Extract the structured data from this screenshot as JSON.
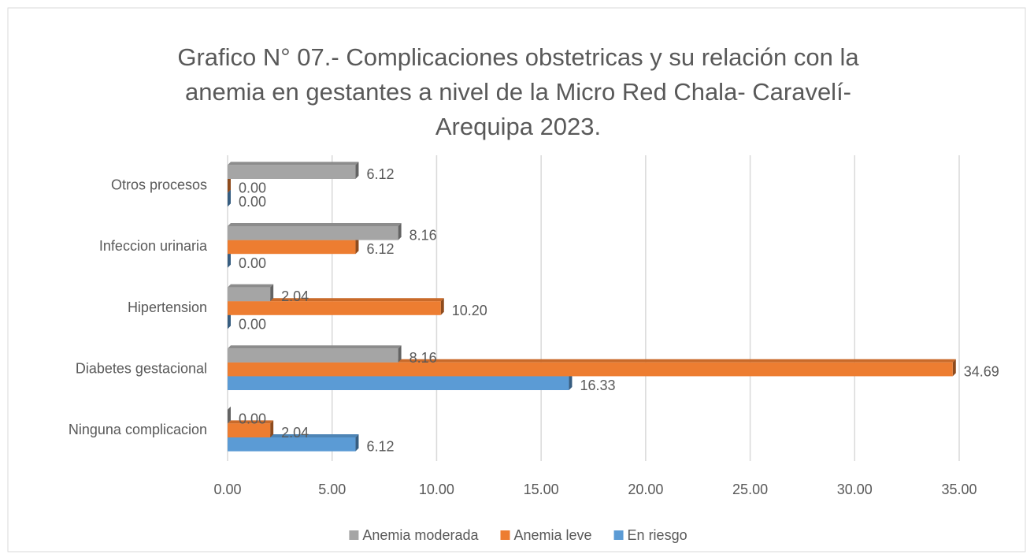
{
  "chart_data": {
    "type": "bar",
    "orientation": "horizontal",
    "title": [
      "Grafico N° 07.- Complicaciones obstetricas y su relación con la",
      "anemia en gestantes a nivel de la Micro Red Chala- Caravelí-",
      "Arequipa 2023."
    ],
    "categories": [
      "Ninguna complicacion",
      "Diabetes gestacional",
      "Hipertension",
      "Infeccion urinaria",
      "Otros procesos"
    ],
    "series": [
      {
        "name": "En riesgo",
        "color": "#5b9bd5",
        "values": [
          6.12,
          16.33,
          0,
          0,
          0
        ],
        "value_labels": [
          "6.12",
          "16.33",
          "0.00",
          "0.00",
          "0.00"
        ]
      },
      {
        "name": "Anemia leve",
        "color": "#ed7d31",
        "values": [
          2.04,
          34.69,
          10.2,
          6.12,
          0
        ],
        "value_labels": [
          "2.04",
          "34.69",
          "10.20",
          "6.12",
          "0.00"
        ]
      },
      {
        "name": "Anemia moderada",
        "color": "#a5a5a5",
        "values": [
          0,
          8.16,
          2.04,
          8.16,
          6.12
        ],
        "value_labels": [
          "0.00",
          "8.16",
          "2.04",
          "8.16",
          "6.12"
        ]
      }
    ],
    "xlim": [
      0,
      35
    ],
    "xticks": [
      {
        "value": 0,
        "label": "0.00"
      },
      {
        "value": 5,
        "label": "5.00"
      },
      {
        "value": 10,
        "label": "10.00"
      },
      {
        "value": 15,
        "label": "15.00"
      },
      {
        "value": 20,
        "label": "20.00"
      },
      {
        "value": 25,
        "label": "25.00"
      },
      {
        "value": 30,
        "label": "30.00"
      },
      {
        "value": 35,
        "label": "35.00"
      }
    ],
    "grid": true,
    "legend": "bottom"
  }
}
